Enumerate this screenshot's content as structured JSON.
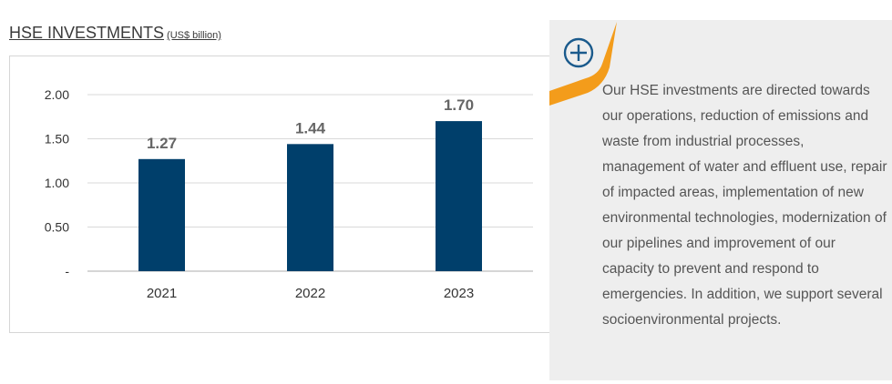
{
  "title": {
    "main": "HSE INVESTMENTS",
    "unit": "(US$ billion)"
  },
  "chart_data": {
    "type": "bar",
    "title": "HSE INVESTMENTS (US$ billion)",
    "categories": [
      "2021",
      "2022",
      "2023"
    ],
    "values": [
      1.27,
      1.44,
      1.7
    ],
    "data_labels": [
      "1.27",
      "1.44",
      "1.70"
    ],
    "ylim": [
      0,
      2.0
    ],
    "yticks": [
      0,
      0.5,
      1.0,
      1.5,
      2.0
    ],
    "ytick_labels": [
      "-",
      "0.50",
      "1.00",
      "1.50",
      "2.00"
    ],
    "xlabel": "",
    "ylabel": "",
    "grid": true,
    "bar_color": "#003f6b"
  },
  "panel": {
    "text": "Our HSE investments are directed towards our operations, reduction of emissions and waste from industrial processes, management of water and effluent use, repair of impacted areas, implementation of new environmental technologies, modernization of our pipelines and improvement of our capacity to prevent and respond to emergencies. In addition, we support several socioenvironmental projects.",
    "icon": "plus-circle-icon",
    "accent_color": "#f39c1b",
    "icon_color": "#1a5a8c"
  }
}
